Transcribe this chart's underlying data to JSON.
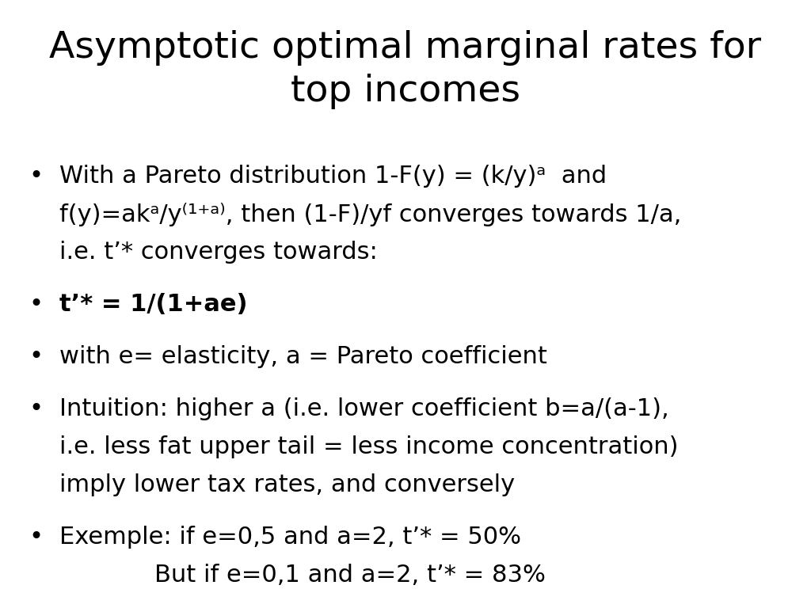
{
  "title_line1": "Asymptotic optimal marginal rates for",
  "title_line2": "top incomes",
  "title_fontsize": 34,
  "body_fontsize": 22,
  "bold_fontsize": 22,
  "background_color": "#ffffff",
  "text_color": "#000000",
  "bullet": "•",
  "bullet_items": [
    {
      "lines": [
        {
          "text": "With a Pareto distribution 1-F(y) = (k/y)ᵃ  and",
          "bold": false
        },
        {
          "text": "f(y)=akᵃ/y⁽¹⁺ᵃ⁾, then (1-F)/yf converges towards 1/a,",
          "bold": false
        },
        {
          "text": "i.e. t’* converges towards:",
          "bold": false
        }
      ]
    },
    {
      "lines": [
        {
          "text": "t’* = 1/(1+ae)",
          "bold": true
        }
      ]
    },
    {
      "lines": [
        {
          "text": "with e= elasticity, a = Pareto coefficient",
          "bold": false
        }
      ]
    },
    {
      "lines": [
        {
          "text": "Intuition: higher a (i.e. lower coefficient b=a/(a-1),",
          "bold": false
        },
        {
          "text": "i.e. less fat upper tail = less income concentration)",
          "bold": false
        },
        {
          "text": "imply lower tax rates, and conversely",
          "bold": false
        }
      ]
    },
    {
      "lines": [
        {
          "text": "Exemple: if e=0,5 and a=2, t’* = 50%",
          "bold": false
        },
        {
          "text": "But if e=0,1 and a=2, t’* = 83%",
          "bold": false,
          "indent": true
        }
      ]
    }
  ]
}
